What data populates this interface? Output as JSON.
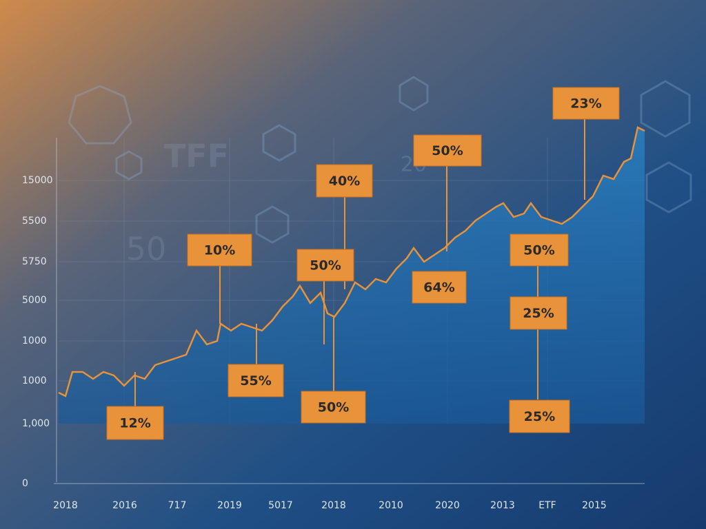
{
  "chart_data": {
    "type": "line",
    "background_text": [
      "TFF",
      "50",
      "20"
    ],
    "y_axis_labels": [
      "15000",
      "5500",
      "5750",
      "5000",
      "1000",
      "1000",
      "1,000",
      "0"
    ],
    "x_axis_labels": [
      "2018",
      "2016",
      "717",
      "2019",
      "5017",
      "2018",
      "2010",
      "2020",
      "2013",
      "ETF",
      "2015"
    ],
    "annotations": [
      "23%",
      "50%",
      "40%",
      "10%",
      "50%",
      "50%",
      "64%",
      "25%",
      "55%",
      "50%",
      "12%",
      "25%"
    ],
    "color": "#e8923a"
  }
}
